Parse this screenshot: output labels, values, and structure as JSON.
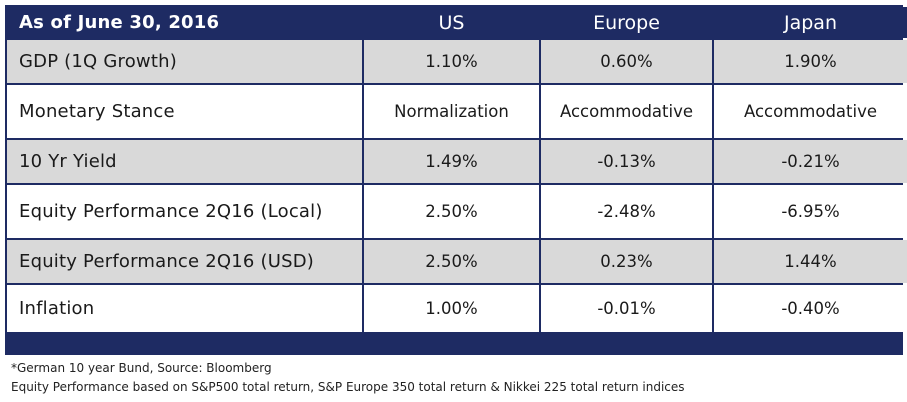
{
  "table": {
    "header": {
      "date_label": "As of June 30, 2016",
      "columns": [
        "US",
        "Europe",
        "Japan"
      ]
    },
    "rows": [
      {
        "label": "GDP (1Q Growth)",
        "values": [
          "1.10%",
          "0.60%",
          "1.90%"
        ]
      },
      {
        "label": "Monetary Stance",
        "values": [
          "Normalization",
          "Accommodative",
          "Accommodative"
        ]
      },
      {
        "label": "10 Yr Yield",
        "values": [
          "1.49%",
          "-0.13%",
          "-0.21%"
        ]
      },
      {
        "label": "Equity Performance 2Q16 (Local)",
        "values": [
          "2.50%",
          "-2.48%",
          "-6.95%"
        ]
      },
      {
        "label": "Equity Performance 2Q16 (USD)",
        "values": [
          "2.50%",
          "0.23%",
          "1.44%"
        ]
      },
      {
        "label": "Inflation",
        "values": [
          "1.00%",
          "-0.01%",
          "-0.40%"
        ]
      }
    ]
  },
  "footnotes": {
    "source": "*German 10 year Bund, Source: Bloomberg",
    "equity_note": "Equity Performance based on S&P500 total return, S&P Europe 350 total return & Nikkei 225 total return indices"
  },
  "colors": {
    "header_background": "#1e2b63",
    "shaded_row": "#d9d9d9",
    "plain_row": "#ffffff"
  }
}
